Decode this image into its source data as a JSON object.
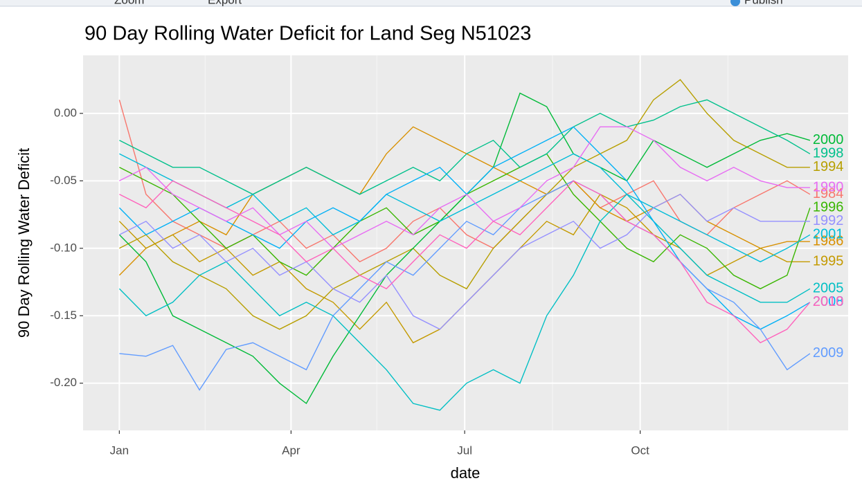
{
  "toolbar": [
    "Zoom",
    "Export",
    "Publish"
  ],
  "chart_data": {
    "type": "line",
    "title": "90 Day Rolling Water Deficit for Land Seg N51023",
    "x_label": "date",
    "y_label": "90 Day Rolling Water Deficit",
    "x": [
      1,
      15,
      29,
      43,
      57,
      71,
      85,
      99,
      113,
      127,
      141,
      155,
      169,
      183,
      197,
      211,
      225,
      239,
      253,
      267,
      281,
      295,
      309,
      323,
      337,
      351,
      363
    ],
    "xlim": [
      -18,
      383
    ],
    "xticks": [
      {
        "value": 1,
        "label": "Jan"
      },
      {
        "value": 91,
        "label": "Apr"
      },
      {
        "value": 182,
        "label": "Jul"
      },
      {
        "value": 274,
        "label": "Oct"
      }
    ],
    "xminor": [
      46,
      136,
      228,
      320
    ],
    "ylim": [
      -0.235,
      0.043
    ],
    "yticks": [
      {
        "value": 0,
        "label": "0.00"
      },
      -0.05,
      {
        "value": -0.1,
        "label": "-0.10"
      },
      -0.15,
      {
        "value": -0.2,
        "label": "-0.20"
      }
    ],
    "grid": true,
    "series": [
      {
        "name": "1984",
        "color": "#F8766D",
        "values": [
          0.01,
          -0.06,
          -0.08,
          -0.09,
          -0.1,
          -0.09,
          -0.08,
          -0.1,
          -0.09,
          -0.11,
          -0.1,
          -0.08,
          -0.07,
          -0.09,
          -0.1,
          -0.08,
          -0.06,
          -0.05,
          -0.07,
          -0.06,
          -0.05,
          -0.08,
          -0.09,
          -0.07,
          -0.06,
          -0.05,
          -0.06
        ]
      },
      {
        "name": "1986",
        "color": "#D89000",
        "values": [
          -0.12,
          -0.1,
          -0.09,
          -0.08,
          -0.09,
          -0.06,
          -0.05,
          -0.04,
          -0.05,
          -0.06,
          -0.03,
          -0.01,
          -0.02,
          -0.03,
          -0.04,
          -0.05,
          -0.06,
          -0.05,
          -0.07,
          -0.08,
          -0.07,
          -0.06,
          -0.08,
          -0.09,
          -0.1,
          -0.095,
          -0.095
        ]
      },
      {
        "name": "1994",
        "color": "#B79F00",
        "values": [
          -0.1,
          -0.09,
          -0.11,
          -0.12,
          -0.13,
          -0.15,
          -0.16,
          -0.15,
          -0.13,
          -0.12,
          -0.11,
          -0.1,
          -0.12,
          -0.13,
          -0.1,
          -0.08,
          -0.06,
          -0.04,
          -0.03,
          -0.02,
          0.01,
          0.025,
          0.0,
          -0.02,
          -0.03,
          -0.04,
          -0.04
        ]
      },
      {
        "name": "1995",
        "color": "#C49A00",
        "values": [
          -0.08,
          -0.1,
          -0.09,
          -0.11,
          -0.1,
          -0.12,
          -0.11,
          -0.13,
          -0.14,
          -0.16,
          -0.14,
          -0.17,
          -0.16,
          -0.14,
          -0.12,
          -0.1,
          -0.08,
          -0.09,
          -0.06,
          -0.07,
          -0.09,
          -0.1,
          -0.12,
          -0.11,
          -0.1,
          -0.11,
          -0.11
        ]
      },
      {
        "name": "1996",
        "color": "#39B600",
        "values": [
          -0.04,
          -0.05,
          -0.06,
          -0.08,
          -0.1,
          -0.09,
          -0.11,
          -0.12,
          -0.1,
          -0.08,
          -0.07,
          -0.09,
          -0.08,
          -0.06,
          -0.05,
          -0.04,
          -0.03,
          -0.06,
          -0.08,
          -0.1,
          -0.11,
          -0.09,
          -0.1,
          -0.12,
          -0.13,
          -0.12,
          -0.07
        ]
      },
      {
        "name": "2000",
        "color": "#00BA38",
        "values": [
          -0.09,
          -0.11,
          -0.15,
          -0.16,
          -0.17,
          -0.18,
          -0.2,
          -0.215,
          -0.18,
          -0.15,
          -0.12,
          -0.1,
          -0.08,
          -0.06,
          -0.04,
          0.015,
          0.005,
          -0.03,
          -0.04,
          -0.05,
          -0.02,
          -0.03,
          -0.04,
          -0.03,
          -0.02,
          -0.015,
          -0.02
        ]
      },
      {
        "name": "1998",
        "color": "#00C08B",
        "values": [
          -0.02,
          -0.03,
          -0.04,
          -0.04,
          -0.05,
          -0.06,
          -0.05,
          -0.04,
          -0.05,
          -0.06,
          -0.05,
          -0.04,
          -0.05,
          -0.03,
          -0.02,
          -0.04,
          -0.03,
          -0.01,
          0.0,
          -0.01,
          -0.005,
          0.005,
          0.01,
          0.0,
          -0.01,
          -0.02,
          -0.03
        ]
      },
      {
        "name": "2005",
        "color": "#00BFC4",
        "values": [
          -0.13,
          -0.15,
          -0.14,
          -0.12,
          -0.11,
          -0.13,
          -0.15,
          -0.14,
          -0.15,
          -0.17,
          -0.19,
          -0.215,
          -0.22,
          -0.2,
          -0.19,
          -0.2,
          -0.15,
          -0.12,
          -0.08,
          -0.06,
          -0.08,
          -0.1,
          -0.12,
          -0.13,
          -0.14,
          -0.14,
          -0.13
        ]
      },
      {
        "name": "2001",
        "color": "#00BCD8",
        "values": [
          -0.03,
          -0.04,
          -0.05,
          -0.06,
          -0.07,
          -0.06,
          -0.08,
          -0.07,
          -0.09,
          -0.08,
          -0.06,
          -0.07,
          -0.08,
          -0.07,
          -0.06,
          -0.05,
          -0.04,
          -0.03,
          -0.04,
          -0.06,
          -0.07,
          -0.08,
          -0.09,
          -0.1,
          -0.11,
          -0.1,
          -0.09
        ]
      },
      {
        "name": "2008",
        "color": "#00B0F6",
        "values": [
          -0.07,
          -0.09,
          -0.08,
          -0.07,
          -0.08,
          -0.09,
          -0.1,
          -0.08,
          -0.07,
          -0.08,
          -0.06,
          -0.05,
          -0.04,
          -0.06,
          -0.04,
          -0.03,
          -0.02,
          -0.01,
          -0.03,
          -0.05,
          -0.08,
          -0.11,
          -0.13,
          -0.15,
          -0.16,
          -0.15,
          -0.14
        ]
      },
      {
        "name": "2009",
        "color": "#619CFF",
        "values": [
          -0.178,
          -0.18,
          -0.172,
          -0.205,
          -0.175,
          -0.17,
          -0.18,
          -0.19,
          -0.15,
          -0.13,
          -0.11,
          -0.12,
          -0.1,
          -0.08,
          -0.09,
          -0.07,
          -0.06,
          -0.05,
          -0.06,
          -0.08,
          -0.09,
          -0.11,
          -0.13,
          -0.14,
          -0.16,
          -0.19,
          -0.178
        ]
      },
      {
        "name": "1992",
        "color": "#9590FF",
        "values": [
          -0.09,
          -0.08,
          -0.1,
          -0.09,
          -0.11,
          -0.1,
          -0.12,
          -0.11,
          -0.13,
          -0.14,
          -0.12,
          -0.15,
          -0.16,
          -0.14,
          -0.12,
          -0.1,
          -0.09,
          -0.08,
          -0.1,
          -0.09,
          -0.07,
          -0.06,
          -0.08,
          -0.07,
          -0.08,
          -0.08,
          -0.08
        ]
      },
      {
        "name": "1990",
        "color": "#E76BF3",
        "values": [
          -0.05,
          -0.04,
          -0.06,
          -0.07,
          -0.08,
          -0.07,
          -0.09,
          -0.08,
          -0.1,
          -0.09,
          -0.08,
          -0.09,
          -0.07,
          -0.06,
          -0.08,
          -0.07,
          -0.05,
          -0.04,
          -0.01,
          -0.01,
          -0.02,
          -0.04,
          -0.05,
          -0.04,
          -0.05,
          -0.055,
          -0.055
        ]
      },
      {
        "name": "2010",
        "color": "#FF62BC",
        "values": [
          -0.06,
          -0.07,
          -0.05,
          -0.06,
          -0.07,
          -0.08,
          -0.09,
          -0.11,
          -0.1,
          -0.12,
          -0.13,
          -0.11,
          -0.09,
          -0.1,
          -0.08,
          -0.09,
          -0.07,
          -0.05,
          -0.06,
          -0.08,
          -0.09,
          -0.11,
          -0.14,
          -0.15,
          -0.17,
          -0.16,
          -0.14
        ]
      }
    ]
  }
}
